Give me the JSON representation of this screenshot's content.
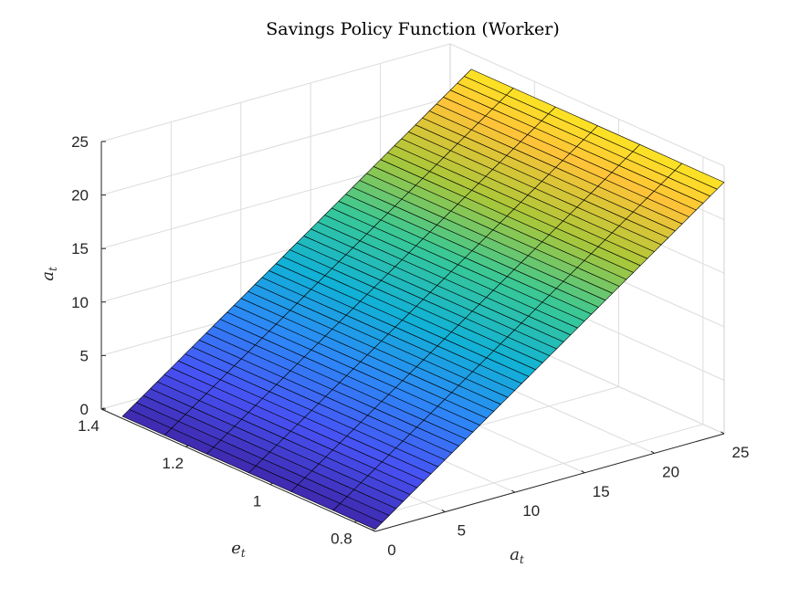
{
  "chart_data": {
    "type": "surface",
    "title": "Savings Policy Function (Worker)",
    "xlabel": {
      "base": "a",
      "sub": "t"
    },
    "ylabel": {
      "base": "e",
      "sub": "t"
    },
    "zlabel": {
      "base": "a",
      "sub": "t"
    },
    "xlim": [
      0,
      25
    ],
    "ylim": [
      0.75,
      1.4
    ],
    "zlim": [
      0,
      25
    ],
    "xticks": [
      "0",
      "5",
      "10",
      "15",
      "20",
      "25"
    ],
    "xtick_values": [
      0,
      5,
      10,
      15,
      20,
      25
    ],
    "yticks": [
      "0.8",
      "1",
      "1.2",
      "1.4"
    ],
    "ytick_values": [
      0.8,
      1.0,
      1.2,
      1.4
    ],
    "zticks": [
      "0",
      "5",
      "10",
      "15",
      "20",
      "25"
    ],
    "ztick_values": [
      0,
      5,
      10,
      15,
      20,
      25
    ],
    "grid": true,
    "colormap": "parula",
    "surface": {
      "a_range": [
        0,
        25
      ],
      "a_steps": 50,
      "e_values": [
        0.75,
        0.85,
        0.95,
        1.05,
        1.15,
        1.25,
        1.35
      ],
      "z_formula": "a' = a_t (approximately, independent of e_t)",
      "z_at_a_min": 0.2,
      "z_at_a_max": 23.5
    }
  }
}
